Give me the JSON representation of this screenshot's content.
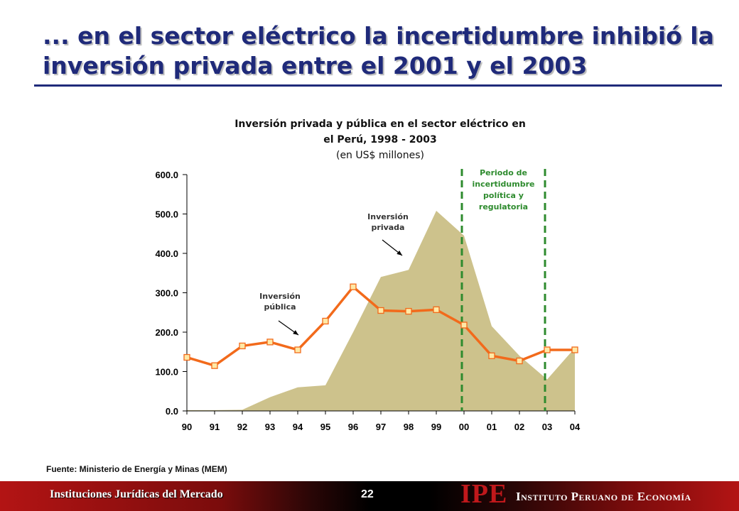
{
  "slide": {
    "title": "... en el sector eléctrico la incertidumbre inhibió la inversión privada entre el 2001 y el 2003",
    "source": "Fuente: Ministerio de Energía y Minas (MEM)"
  },
  "footer": {
    "left_text": "Instituciones Jurídicas del Mercado",
    "page_number": "22",
    "logo": "IPE",
    "institute": "Instituto Peruano de Economía"
  },
  "colors": {
    "title": "#1f2a7a",
    "private_area": "#cdc28c",
    "public_line": "#f26a1b",
    "uncertainty_lines": "#2e8b2e",
    "footer_red": "#b31414",
    "logo_red": "#c0181b"
  },
  "chart_data": {
    "type": "area",
    "title": "Inversión privada y pública en el sector eléctrico en el Perú, 1998 - 2003",
    "subtitle": "(en US$ millones)",
    "xlabel": "",
    "ylabel": "",
    "categories": [
      "90",
      "91",
      "92",
      "93",
      "94",
      "95",
      "96",
      "97",
      "98",
      "99",
      "00",
      "01",
      "02",
      "03",
      "04"
    ],
    "ylim": [
      0,
      600
    ],
    "yticks": [
      "0.0",
      "100.0",
      "200.0",
      "300.0",
      "400.0",
      "500.0",
      "600.0"
    ],
    "ytick_values": [
      0,
      100,
      200,
      300,
      400,
      500,
      600
    ],
    "grid": false,
    "series": [
      {
        "name": "Inversión privada",
        "kind": "area",
        "values": [
          2,
          2,
          3,
          35,
          60,
          65,
          200,
          340,
          358,
          508,
          445,
          215,
          140,
          80,
          160
        ]
      },
      {
        "name": "Inversión pública",
        "kind": "line-marker",
        "values": [
          136,
          115,
          165,
          175,
          155,
          228,
          315,
          255,
          253,
          257,
          218,
          140,
          127,
          155,
          155
        ]
      }
    ],
    "annotations": [
      {
        "text": "Inversión privada",
        "lines": [
          "Inversión",
          "privada"
        ]
      },
      {
        "text": "Inversión pública",
        "lines": [
          "Inversión",
          "pública"
        ]
      },
      {
        "text": "Periodo de incertidumbre política y regulatoria",
        "lines": [
          "Periodo de",
          "incertidumbre",
          "política y",
          "regulatoria"
        ],
        "from_year": "00",
        "to_year": "03"
      }
    ]
  }
}
